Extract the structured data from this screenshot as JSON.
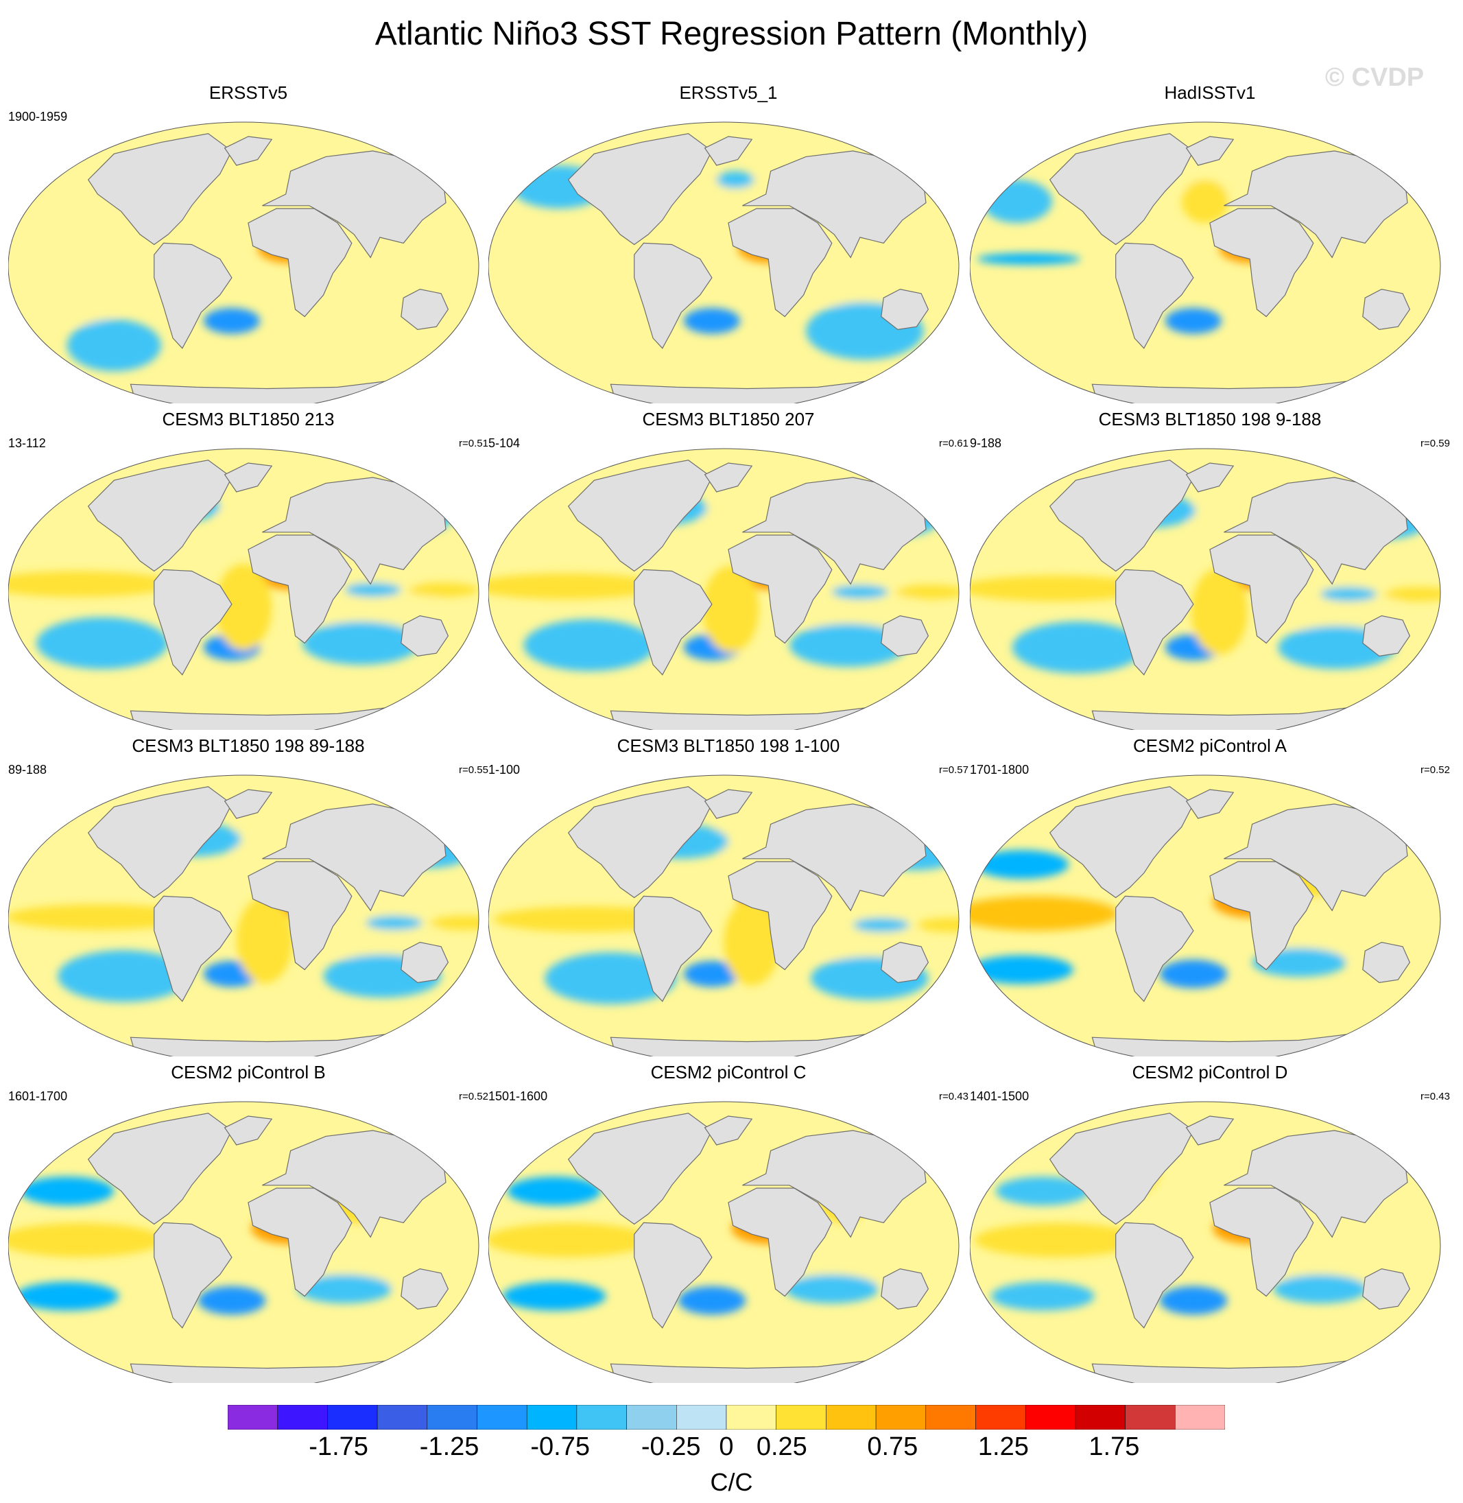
{
  "title": "Atlantic Niño3 SST Regression Pattern (Monthly)",
  "watermark": "© CVDP",
  "colors": {
    "land": "#e0e0e0",
    "coast": "#6e6e6e",
    "levels": [
      "#8a2be2",
      "#3d16ff",
      "#1a2eff",
      "#3a5fe6",
      "#2a7df0",
      "#1e96ff",
      "#00b4ff",
      "#40c4f6",
      "#8fd0ef",
      "#bde3f5",
      "#fff799",
      "#ffe234",
      "#ffc30f",
      "#ffa000",
      "#ff7800",
      "#ff3c00",
      "#ff0000",
      "#d20000",
      "#d33838",
      "#ffb3b3"
    ]
  },
  "panels": [
    {
      "title": "ERSSTv5",
      "period": "1900-1959",
      "corr": "",
      "pattern": 0
    },
    {
      "title": "ERSSTv5_1",
      "period": "",
      "corr": "",
      "pattern": 1
    },
    {
      "title": "HadISSTv1",
      "period": "",
      "corr": "",
      "pattern": 2
    },
    {
      "title": "CESM3 BLT1850 213",
      "period": "13-112",
      "corr": "r=0.51",
      "pattern": 3
    },
    {
      "title": "CESM3 BLT1850 207",
      "period": "5-104",
      "corr": "r=0.61",
      "pattern": 4
    },
    {
      "title": "CESM3 BLT1850 198 9-188",
      "period": "9-188",
      "corr": "r=0.59",
      "pattern": 5
    },
    {
      "title": "CESM3 BLT1850 198 89-188",
      "period": "89-188",
      "corr": "r=0.55",
      "pattern": 6
    },
    {
      "title": "CESM3 BLT1850 198 1-100",
      "period": "1-100",
      "corr": "r=0.57",
      "pattern": 7
    },
    {
      "title": "CESM2 piControl A",
      "period": "1701-1800",
      "corr": "r=0.52",
      "pattern": 8
    },
    {
      "title": "CESM2 piControl B",
      "period": "1601-1700",
      "corr": "r=0.52",
      "pattern": 9
    },
    {
      "title": "CESM2 piControl C",
      "period": "1501-1600",
      "corr": "r=0.43",
      "pattern": 10
    },
    {
      "title": "CESM2 piControl D",
      "period": "1401-1500",
      "corr": "r=0.43",
      "pattern": 11
    }
  ],
  "colorbar": {
    "ticks": [
      "-1.75",
      "-1.25",
      "-0.75",
      "-0.25",
      "0",
      "0.25",
      "0.75",
      "1.25",
      "1.75"
    ],
    "tick_values": [
      -1.75,
      -1.25,
      -0.75,
      -0.25,
      0,
      0.25,
      0.75,
      1.25,
      1.75
    ],
    "min": -2.25,
    "max": 2.25,
    "unit": "C/C"
  }
}
